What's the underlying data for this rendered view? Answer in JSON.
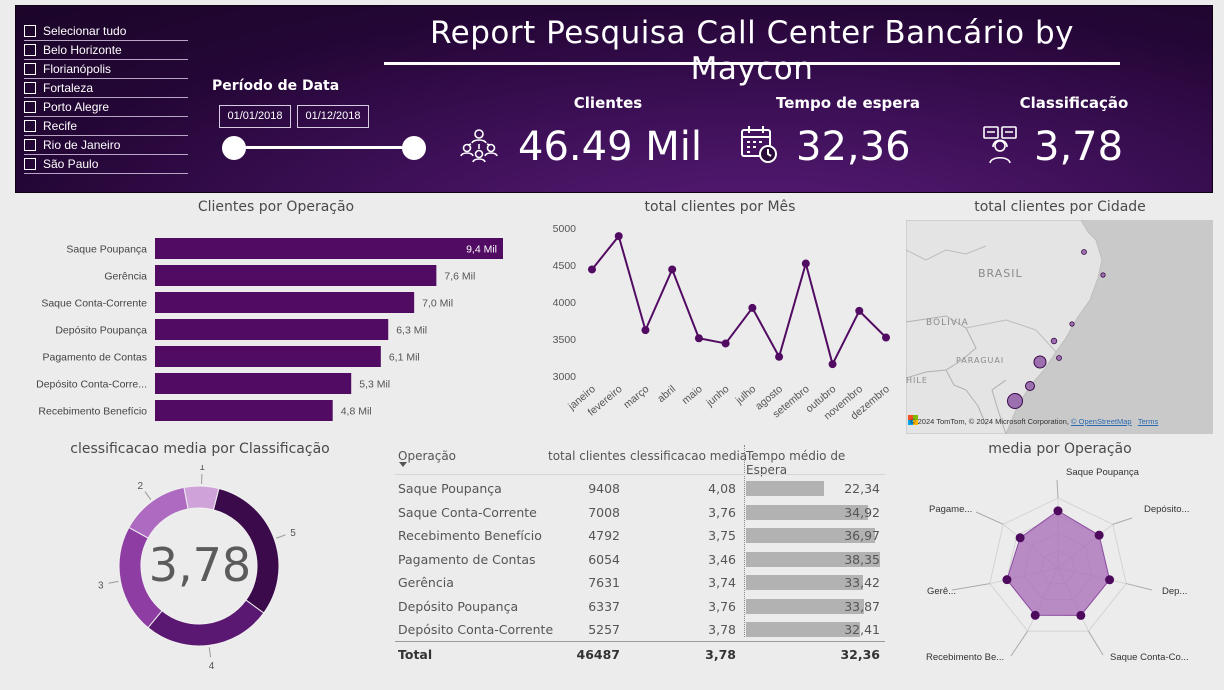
{
  "header": {
    "title": "Report Pesquisa Call Center Bancário by Maycon",
    "date_filter": {
      "title": "Período de Data",
      "start": "01/01/2018",
      "end": "01/12/2018"
    },
    "city_slicer": [
      "Selecionar tudo",
      "Belo Horizonte",
      "Florianópolis",
      "Fortaleza",
      "Porto Alegre",
      "Recife",
      "Rio de Janeiro",
      "São Paulo"
    ],
    "kpis": [
      {
        "label": "Clientes",
        "value": "46.49 Mil",
        "icon": "people-network-icon"
      },
      {
        "label": "Tempo de espera",
        "value": "32,36",
        "icon": "calendar-clock-icon"
      },
      {
        "label": "Classificação",
        "value": "3,78",
        "icon": "customer-support-icon"
      }
    ]
  },
  "bar_chart": {
    "title": "Clientes por Operação",
    "chart_data": {
      "type": "bar",
      "categories": [
        "Saque Poupança",
        "Gerência",
        "Saque Conta-Corrente",
        "Depósito Poupança",
        "Pagamento de Contas",
        "Depósito Conta-Corre...",
        "Recebimento Benefício"
      ],
      "values": [
        9.4,
        7.6,
        7.0,
        6.3,
        6.1,
        5.3,
        4.8
      ],
      "data_labels": [
        "9,4 Mil",
        "7,6 Mil",
        "7,0 Mil",
        "6,3 Mil",
        "6,1 Mil",
        "5,3 Mil",
        "4,8 Mil"
      ],
      "color": "#520b62"
    }
  },
  "line_chart": {
    "title": "total clientes por Mês",
    "chart_data": {
      "type": "line",
      "x": [
        "janeiro",
        "fevereiro",
        "março",
        "abril",
        "maio",
        "junho",
        "julho",
        "agosto",
        "setembro",
        "outubro",
        "novembro",
        "dezembro"
      ],
      "values": [
        4440,
        4890,
        3620,
        4440,
        3510,
        3440,
        3920,
        3260,
        4520,
        3160,
        3880,
        3520
      ],
      "yticks": [
        "5000",
        "4500",
        "4000",
        "3500",
        "3000"
      ],
      "ylim": [
        3000,
        5000
      ],
      "color": "#520b62"
    }
  },
  "map": {
    "title": "total clientes por Cidade",
    "labels": {
      "brasil": "BRASIL",
      "bolivia": "BOLIVIA",
      "paraguai": "PARAGUAI",
      "chile": "HILE"
    },
    "attribution": "© 2024 TomTom, © 2024 Microsoft Corporation, ",
    "osm_link": "© OpenStreetMap",
    "terms": "Terms"
  },
  "donut": {
    "title": "clessificacao media por Classificação",
    "center_value": "3,78",
    "chart_data": {
      "type": "pie",
      "labels": [
        "5",
        "4",
        "3",
        "2",
        "1"
      ],
      "values": [
        31,
        26,
        22,
        14,
        7
      ],
      "colors": [
        "#3a0a4a",
        "#5b1873",
        "#8e3ea3",
        "#ad6ac0",
        "#cfa3d9"
      ]
    }
  },
  "table": {
    "headers": [
      "Operação",
      "total clientes",
      "clessificacao media",
      "Tempo médio de Espera"
    ],
    "rows": [
      {
        "op": "Saque Poupança",
        "clients": "9408",
        "rating": "4,08",
        "wait": "22,34",
        "wait_frac": 0.58
      },
      {
        "op": "Saque Conta-Corrente",
        "clients": "7008",
        "rating": "3,76",
        "wait": "34,92",
        "wait_frac": 0.91
      },
      {
        "op": "Recebimento Benefício",
        "clients": "4792",
        "rating": "3,75",
        "wait": "36,97",
        "wait_frac": 0.96
      },
      {
        "op": "Pagamento de Contas",
        "clients": "6054",
        "rating": "3,46",
        "wait": "38,35",
        "wait_frac": 1.0
      },
      {
        "op": "Gerência",
        "clients": "7631",
        "rating": "3,74",
        "wait": "33,42",
        "wait_frac": 0.87
      },
      {
        "op": "Depósito Poupança",
        "clients": "6337",
        "rating": "3,76",
        "wait": "33,87",
        "wait_frac": 0.88
      },
      {
        "op": "Depósito Conta-Corrente",
        "clients": "5257",
        "rating": "3,78",
        "wait": "32,41",
        "wait_frac": 0.85
      }
    ],
    "total": {
      "label": "Total",
      "clients": "46487",
      "rating": "3,78",
      "wait": "32,36"
    }
  },
  "radar": {
    "title": "media por Operação",
    "chart_data": {
      "type": "radar",
      "axes": [
        "Saque Poupança",
        "Depósito...",
        "Dep...",
        "Saque Conta-Co...",
        "Recebimento Be...",
        "Gerê...",
        "Pagame..."
      ],
      "values": [
        4.08,
        3.76,
        3.78,
        3.76,
        3.75,
        3.74,
        3.46
      ],
      "rmax": 5
    }
  }
}
